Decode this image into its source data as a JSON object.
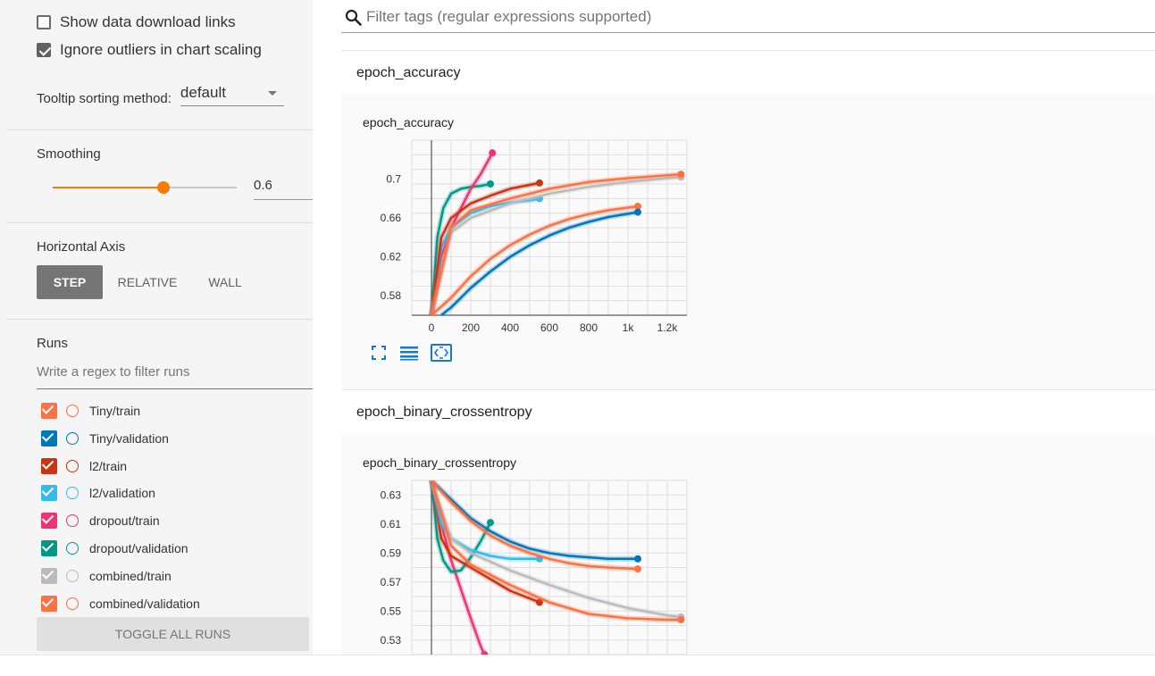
{
  "sidebar": {
    "show_download_links": {
      "label": "Show data download links",
      "checked": false
    },
    "ignore_outliers": {
      "label": "Ignore outliers in chart scaling",
      "checked": true
    },
    "tooltip_sorting": {
      "label": "Tooltip sorting method:",
      "value": "default"
    },
    "smoothing": {
      "label": "Smoothing",
      "value": "0.6",
      "fraction": 0.6
    },
    "horizontal_axis": {
      "label": "Horizontal Axis",
      "options": [
        {
          "label": "STEP",
          "active": true
        },
        {
          "label": "RELATIVE",
          "active": false
        },
        {
          "label": "WALL",
          "active": false
        }
      ]
    },
    "runs": {
      "label": "Runs",
      "filter_placeholder": "Write a regex to filter runs",
      "items": [
        {
          "name": "Tiny/train",
          "color": "#ff7043",
          "checked": true
        },
        {
          "name": "Tiny/validation",
          "color": "#0077bb",
          "checked": true
        },
        {
          "name": "l2/train",
          "color": "#cc3311",
          "checked": true
        },
        {
          "name": "l2/validation",
          "color": "#33bbee",
          "checked": true
        },
        {
          "name": "dropout/train",
          "color": "#ee3377",
          "checked": true
        },
        {
          "name": "dropout/validation",
          "color": "#009988",
          "checked": true
        },
        {
          "name": "combined/train",
          "color": "#bbbbbb",
          "checked": true
        },
        {
          "name": "combined/validation",
          "color": "#ff7043",
          "checked": true
        }
      ],
      "toggle_all_label": "TOGGLE ALL RUNS"
    }
  },
  "main": {
    "filter_placeholder": "Filter tags (regular expressions supported)",
    "cards": [
      {
        "header": "epoch_accuracy",
        "chart_title": "epoch_accuracy"
      },
      {
        "header": "epoch_binary_crossentropy",
        "chart_title": "epoch_binary_crossentropy"
      }
    ]
  },
  "chart_data": [
    {
      "type": "line",
      "title": "epoch_accuracy",
      "xlim": [
        -100,
        1300
      ],
      "ylim": [
        0.56,
        0.74
      ],
      "x_ticks": [
        0,
        200,
        400,
        600,
        800,
        1000,
        1200
      ],
      "x_tick_labels": [
        "0",
        "200",
        "400",
        "600",
        "800",
        "1k",
        "1.2k"
      ],
      "y_ticks": [
        0.58,
        0.62,
        0.66,
        0.7
      ],
      "y_tick_labels": [
        "0.58",
        "0.62",
        "0.66",
        "0.7"
      ],
      "grid": true,
      "series": [
        {
          "color": "#009988",
          "x": [
            0,
            30,
            60,
            100,
            150,
            200,
            250,
            300
          ],
          "y": [
            0.56,
            0.64,
            0.67,
            0.685,
            0.69,
            0.692,
            0.693,
            0.695
          ]
        },
        {
          "color": "#ee3377",
          "x": [
            0,
            50,
            100,
            150,
            200,
            250,
            310
          ],
          "y": [
            0.56,
            0.62,
            0.65,
            0.67,
            0.69,
            0.705,
            0.727
          ]
        },
        {
          "color": "#33bbee",
          "x": [
            0,
            50,
            100,
            200,
            300,
            400,
            500,
            550
          ],
          "y": [
            0.56,
            0.63,
            0.65,
            0.665,
            0.672,
            0.676,
            0.678,
            0.68
          ]
        },
        {
          "color": "#cc3311",
          "x": [
            0,
            50,
            100,
            200,
            300,
            400,
            550
          ],
          "y": [
            0.56,
            0.64,
            0.66,
            0.675,
            0.683,
            0.69,
            0.696
          ]
        },
        {
          "color": "#bbbbbb",
          "x": [
            0,
            100,
            200,
            400,
            600,
            800,
            1000,
            1200,
            1270
          ],
          "y": [
            0.56,
            0.645,
            0.66,
            0.675,
            0.685,
            0.692,
            0.697,
            0.701,
            0.702
          ]
        },
        {
          "color": "#ff7043",
          "x": [
            0,
            100,
            200,
            400,
            600,
            800,
            1000,
            1200,
            1270
          ],
          "y": [
            0.56,
            0.65,
            0.668,
            0.68,
            0.69,
            0.697,
            0.701,
            0.704,
            0.705
          ]
        },
        {
          "color": "#ff7043",
          "x": [
            0,
            100,
            200,
            300,
            400,
            500,
            600,
            700,
            800,
            900,
            1050
          ],
          "y": [
            0.56,
            0.578,
            0.6,
            0.618,
            0.632,
            0.643,
            0.652,
            0.659,
            0.664,
            0.668,
            0.672
          ]
        },
        {
          "color": "#0077bb",
          "x": [
            50,
            100,
            200,
            300,
            400,
            500,
            600,
            700,
            800,
            900,
            1050
          ],
          "y": [
            0.56,
            0.568,
            0.588,
            0.605,
            0.62,
            0.632,
            0.642,
            0.65,
            0.656,
            0.661,
            0.666
          ]
        }
      ]
    },
    {
      "type": "line",
      "title": "epoch_binary_crossentropy",
      "xlim": [
        -100,
        1300
      ],
      "ylim": [
        0.52,
        0.64
      ],
      "y_ticks": [
        0.53,
        0.55,
        0.57,
        0.59,
        0.61,
        0.63
      ],
      "y_tick_labels": [
        "0.53",
        "0.55",
        "0.57",
        "0.59",
        "0.61",
        "0.63"
      ],
      "grid": true,
      "series": [
        {
          "color": "#ee3377",
          "x": [
            0,
            50,
            100,
            150,
            200,
            250,
            270
          ],
          "y": [
            0.64,
            0.61,
            0.585,
            0.565,
            0.545,
            0.526,
            0.52
          ]
        },
        {
          "color": "#009988",
          "x": [
            0,
            30,
            60,
            100,
            150,
            200,
            250,
            300
          ],
          "y": [
            0.64,
            0.6,
            0.585,
            0.577,
            0.578,
            0.587,
            0.598,
            0.611
          ]
        },
        {
          "color": "#cc3311",
          "x": [
            0,
            50,
            100,
            200,
            300,
            400,
            550
          ],
          "y": [
            0.64,
            0.6,
            0.588,
            0.58,
            0.572,
            0.564,
            0.556
          ]
        },
        {
          "color": "#33bbee",
          "x": [
            0,
            50,
            100,
            200,
            300,
            400,
            550
          ],
          "y": [
            0.64,
            0.61,
            0.6,
            0.592,
            0.588,
            0.586,
            0.586
          ]
        },
        {
          "color": "#bbbbbb",
          "x": [
            0,
            100,
            200,
            400,
            600,
            800,
            1000,
            1200,
            1270
          ],
          "y": [
            0.64,
            0.6,
            0.59,
            0.578,
            0.568,
            0.559,
            0.552,
            0.547,
            0.546
          ]
        },
        {
          "color": "#ff7043",
          "x": [
            0,
            100,
            200,
            400,
            600,
            800,
            1000,
            1200,
            1270
          ],
          "y": [
            0.64,
            0.595,
            0.582,
            0.568,
            0.556,
            0.548,
            0.545,
            0.544,
            0.544
          ]
        },
        {
          "color": "#0077bb",
          "x": [
            0,
            100,
            200,
            300,
            400,
            500,
            600,
            700,
            800,
            900,
            1050
          ],
          "y": [
            0.64,
            0.627,
            0.614,
            0.605,
            0.598,
            0.593,
            0.59,
            0.588,
            0.587,
            0.586,
            0.586
          ]
        },
        {
          "color": "#ff7043",
          "x": [
            0,
            100,
            200,
            300,
            400,
            500,
            600,
            700,
            800,
            900,
            1050
          ],
          "y": [
            0.64,
            0.625,
            0.612,
            0.602,
            0.595,
            0.59,
            0.586,
            0.583,
            0.581,
            0.58,
            0.579
          ]
        }
      ]
    }
  ]
}
